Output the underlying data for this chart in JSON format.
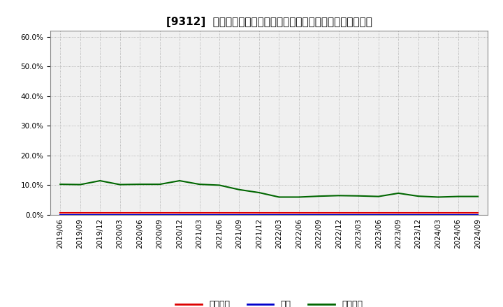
{
  "title": "[9312]  売上債権、在庫、買入債務の総資産に対する比率の推移",
  "background_color": "#ffffff",
  "plot_bg_color": "#f0f0f0",
  "grid_color": "#999999",
  "ylim": [
    0.0,
    0.62
  ],
  "yticks": [
    0.0,
    0.1,
    0.2,
    0.3,
    0.4,
    0.5,
    0.6
  ],
  "x_labels": [
    "2019/06",
    "2019/09",
    "2019/12",
    "2020/03",
    "2020/06",
    "2020/09",
    "2020/12",
    "2021/03",
    "2021/06",
    "2021/09",
    "2021/12",
    "2022/03",
    "2022/06",
    "2022/09",
    "2022/12",
    "2023/03",
    "2023/06",
    "2023/09",
    "2023/12",
    "2024/03",
    "2024/06",
    "2024/09"
  ],
  "series_order": [
    "売上債権",
    "在庫",
    "買入債務"
  ],
  "series": {
    "売上債権": {
      "color": "#dd0000",
      "values": [
        0.008,
        0.008,
        0.008,
        0.008,
        0.008,
        0.008,
        0.008,
        0.008,
        0.008,
        0.008,
        0.008,
        0.008,
        0.008,
        0.008,
        0.008,
        0.008,
        0.008,
        0.008,
        0.008,
        0.008,
        0.008,
        0.008
      ]
    },
    "在庫": {
      "color": "#0000cc",
      "values": [
        0.001,
        0.001,
        0.001,
        0.001,
        0.001,
        0.001,
        0.001,
        0.001,
        0.001,
        0.001,
        0.001,
        0.001,
        0.001,
        0.001,
        0.001,
        0.001,
        0.001,
        0.001,
        0.001,
        0.001,
        0.001,
        0.001
      ]
    },
    "買入債務": {
      "color": "#006600",
      "values": [
        0.103,
        0.102,
        0.115,
        0.102,
        0.103,
        0.103,
        0.115,
        0.103,
        0.1,
        0.085,
        0.075,
        0.06,
        0.06,
        0.063,
        0.065,
        0.064,
        0.062,
        0.073,
        0.063,
        0.06,
        0.062,
        0.062
      ]
    }
  },
  "legend_labels": [
    "売上債権",
    "在庫",
    "買入債務"
  ],
  "legend_colors": [
    "#dd0000",
    "#0000cc",
    "#006600"
  ],
  "title_fontsize": 11,
  "tick_fontsize": 7.5,
  "legend_fontsize": 9
}
